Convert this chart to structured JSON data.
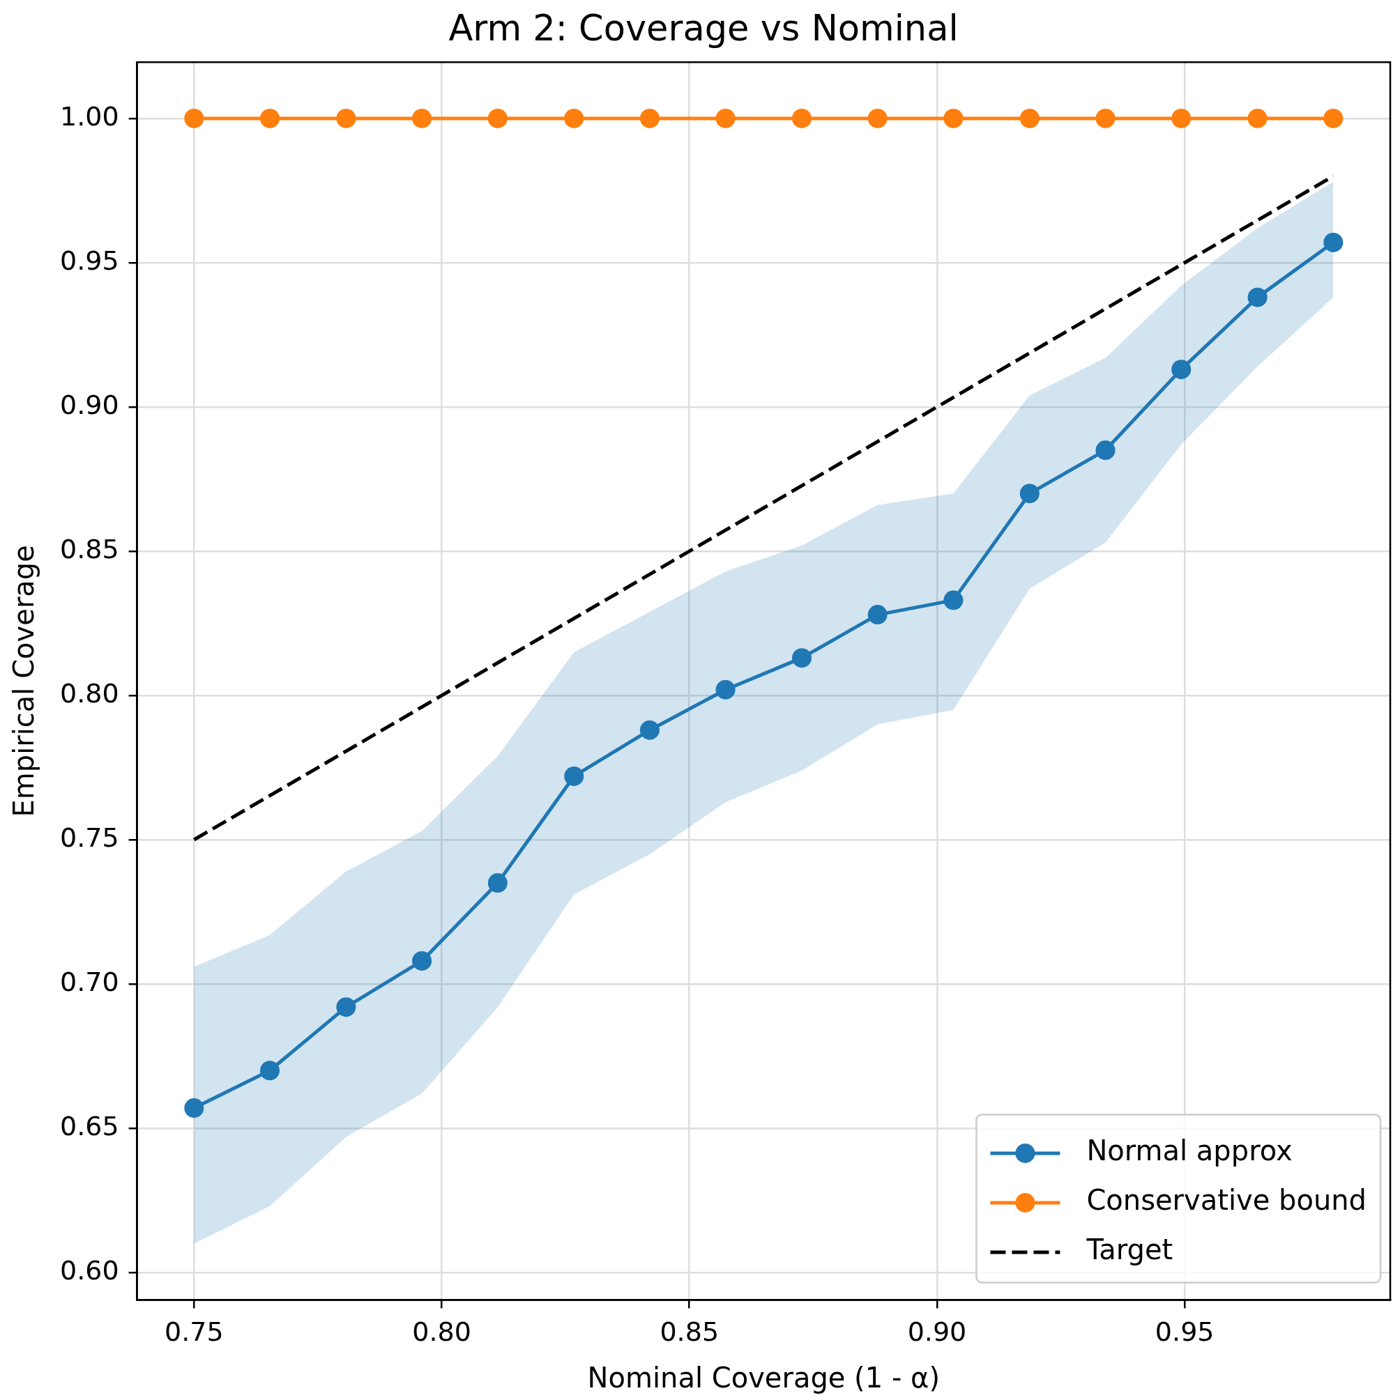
{
  "chart_data": {
    "type": "line",
    "title": "Arm 2: Coverage vs Nominal",
    "xlabel": "Nominal Coverage (1 - α)",
    "ylabel": "Empirical Coverage",
    "x": [
      0.75,
      0.7653,
      0.7807,
      0.796,
      0.8113,
      0.8267,
      0.842,
      0.8573,
      0.8727,
      0.888,
      0.9033,
      0.9187,
      0.934,
      0.9493,
      0.9647,
      0.98
    ],
    "series": [
      {
        "name": "Normal approx",
        "color": "#1f77b4",
        "marker": "circle",
        "values": [
          0.657,
          0.67,
          0.692,
          0.708,
          0.735,
          0.772,
          0.788,
          0.802,
          0.813,
          0.828,
          0.833,
          0.87,
          0.885,
          0.913,
          0.938,
          0.957
        ],
        "lower": [
          0.61,
          0.623,
          0.647,
          0.662,
          0.692,
          0.731,
          0.745,
          0.763,
          0.774,
          0.79,
          0.795,
          0.837,
          0.853,
          0.887,
          0.914,
          0.938
        ],
        "upper": [
          0.706,
          0.717,
          0.739,
          0.753,
          0.779,
          0.815,
          0.829,
          0.843,
          0.852,
          0.866,
          0.87,
          0.904,
          0.917,
          0.942,
          0.962,
          0.978
        ]
      },
      {
        "name": "Conservative bound",
        "color": "#ff7f0e",
        "marker": "circle",
        "values": [
          1,
          1,
          1,
          1,
          1,
          1,
          1,
          1,
          1,
          1,
          1,
          1,
          1,
          1,
          1,
          1
        ]
      },
      {
        "name": "Target",
        "color": "#000000",
        "marker": "none",
        "line_style": "dashed",
        "x": [
          0.75,
          0.98
        ],
        "values": [
          0.75,
          0.98
        ]
      }
    ],
    "xlim": [
      0.7385,
      0.9915
    ],
    "ylim": [
      0.5905,
      1.0195
    ],
    "xticks": [
      0.75,
      {
        "value": 0.8,
        "label": "0.80"
      },
      0.85,
      {
        "value": 0.9,
        "label": "0.90"
      },
      0.95
    ],
    "yticks": [
      {
        "value": 0.6,
        "label": "0.60"
      },
      0.65,
      {
        "value": 0.7,
        "label": "0.70"
      },
      0.75,
      {
        "value": 0.8,
        "label": "0.80"
      },
      0.85,
      {
        "value": 0.9,
        "label": "0.90"
      },
      0.95,
      {
        "value": 1,
        "label": "1.00"
      }
    ],
    "grid": true,
    "legend": "bottom right"
  }
}
